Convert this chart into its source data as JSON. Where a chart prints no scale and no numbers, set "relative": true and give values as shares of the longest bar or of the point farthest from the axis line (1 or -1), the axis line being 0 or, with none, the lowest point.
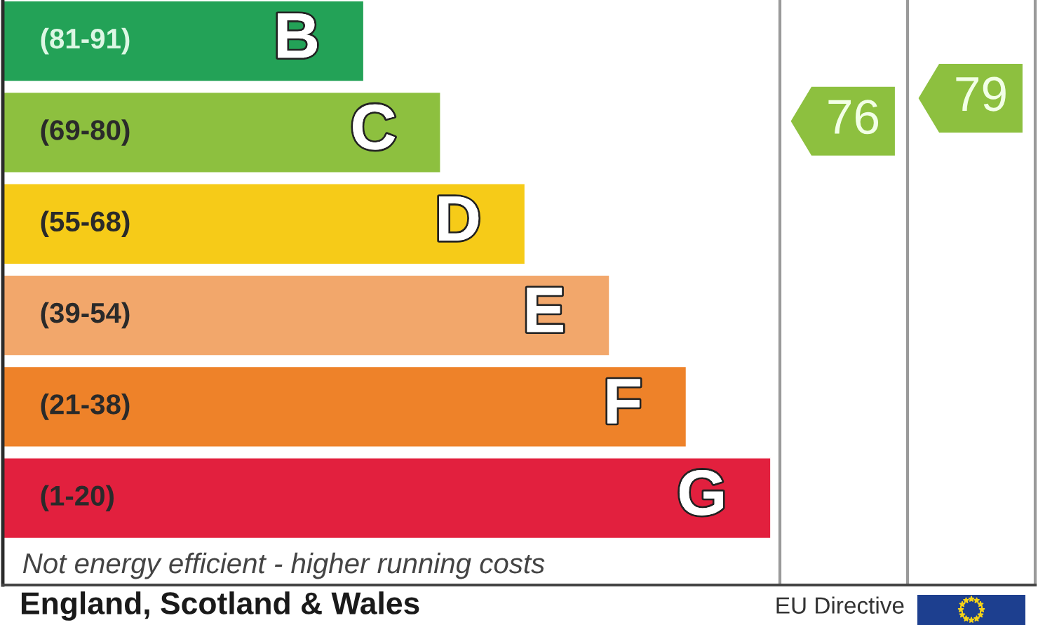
{
  "chart_data": {
    "type": "bar",
    "orientation": "horizontal",
    "relative": true,
    "categories": [
      "B",
      "C",
      "D",
      "E",
      "F",
      "G"
    ],
    "values": [
      0.47,
      0.57,
      0.68,
      0.79,
      0.89,
      1
    ],
    "colors": [
      "#23a257",
      "#8dc03f",
      "#f6cb18",
      "#f2a76b",
      "#ee8229",
      "#e2203e"
    ],
    "annotations": [
      "(81-91)",
      "(69-80)",
      "(55-68)",
      "(39-54)",
      "(21-38)",
      "(1-20)",
      "76",
      "79",
      "Not energy efficient - higher running costs",
      "England, Scotland & Wales",
      "EU Directive"
    ]
  }
}
